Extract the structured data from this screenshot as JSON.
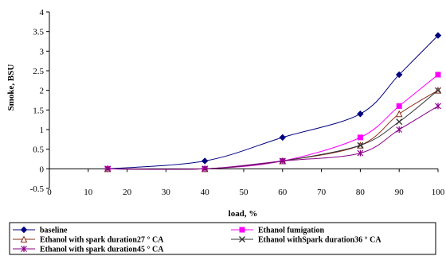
{
  "chart_data": {
    "type": "line",
    "xlabel": "load, %",
    "ylabel": "Smoke, BSU",
    "xlim": [
      0,
      100
    ],
    "ylim": [
      -0.5,
      4
    ],
    "x_ticks": [
      0,
      10,
      20,
      30,
      40,
      50,
      60,
      70,
      80,
      90,
      100
    ],
    "y_ticks": [
      -0.5,
      0,
      0.5,
      1,
      1.5,
      2,
      2.5,
      3,
      3.5,
      4
    ],
    "y_tick_labels": [
      "-0.5",
      "0",
      "0.5",
      "1",
      "1.5",
      "2",
      "2.5",
      "3",
      "3.5",
      "4"
    ],
    "grid": false,
    "legend_position": "bottom",
    "x": [
      15,
      40,
      60,
      80,
      90,
      100
    ],
    "series": [
      {
        "name": "baseline",
        "values": [
          0,
          0.2,
          0.8,
          1.4,
          2.4,
          3.4
        ],
        "color": "#000080",
        "marker": "diamond"
      },
      {
        "name": "Ethanol fumigation",
        "values": [
          0,
          0,
          0.2,
          0.8,
          1.6,
          2.4
        ],
        "color": "#ff00ff",
        "marker": "square"
      },
      {
        "name": "Ethanol with spark duration27 ° CA",
        "values": [
          0,
          0,
          0.2,
          0.6,
          1.4,
          2.0
        ],
        "color": "#8b2d1a",
        "marker": "triangle"
      },
      {
        "name": "Ethanol withSpark duration36 ° CA",
        "values": [
          0,
          0,
          0.2,
          0.6,
          1.2,
          2.0
        ],
        "color": "#333333",
        "marker": "x"
      },
      {
        "name": "Ethanol with spark duration45 ° CA",
        "values": [
          0,
          0,
          0.2,
          0.4,
          1.0,
          1.6
        ],
        "color": "#8b008b",
        "marker": "star"
      }
    ]
  }
}
